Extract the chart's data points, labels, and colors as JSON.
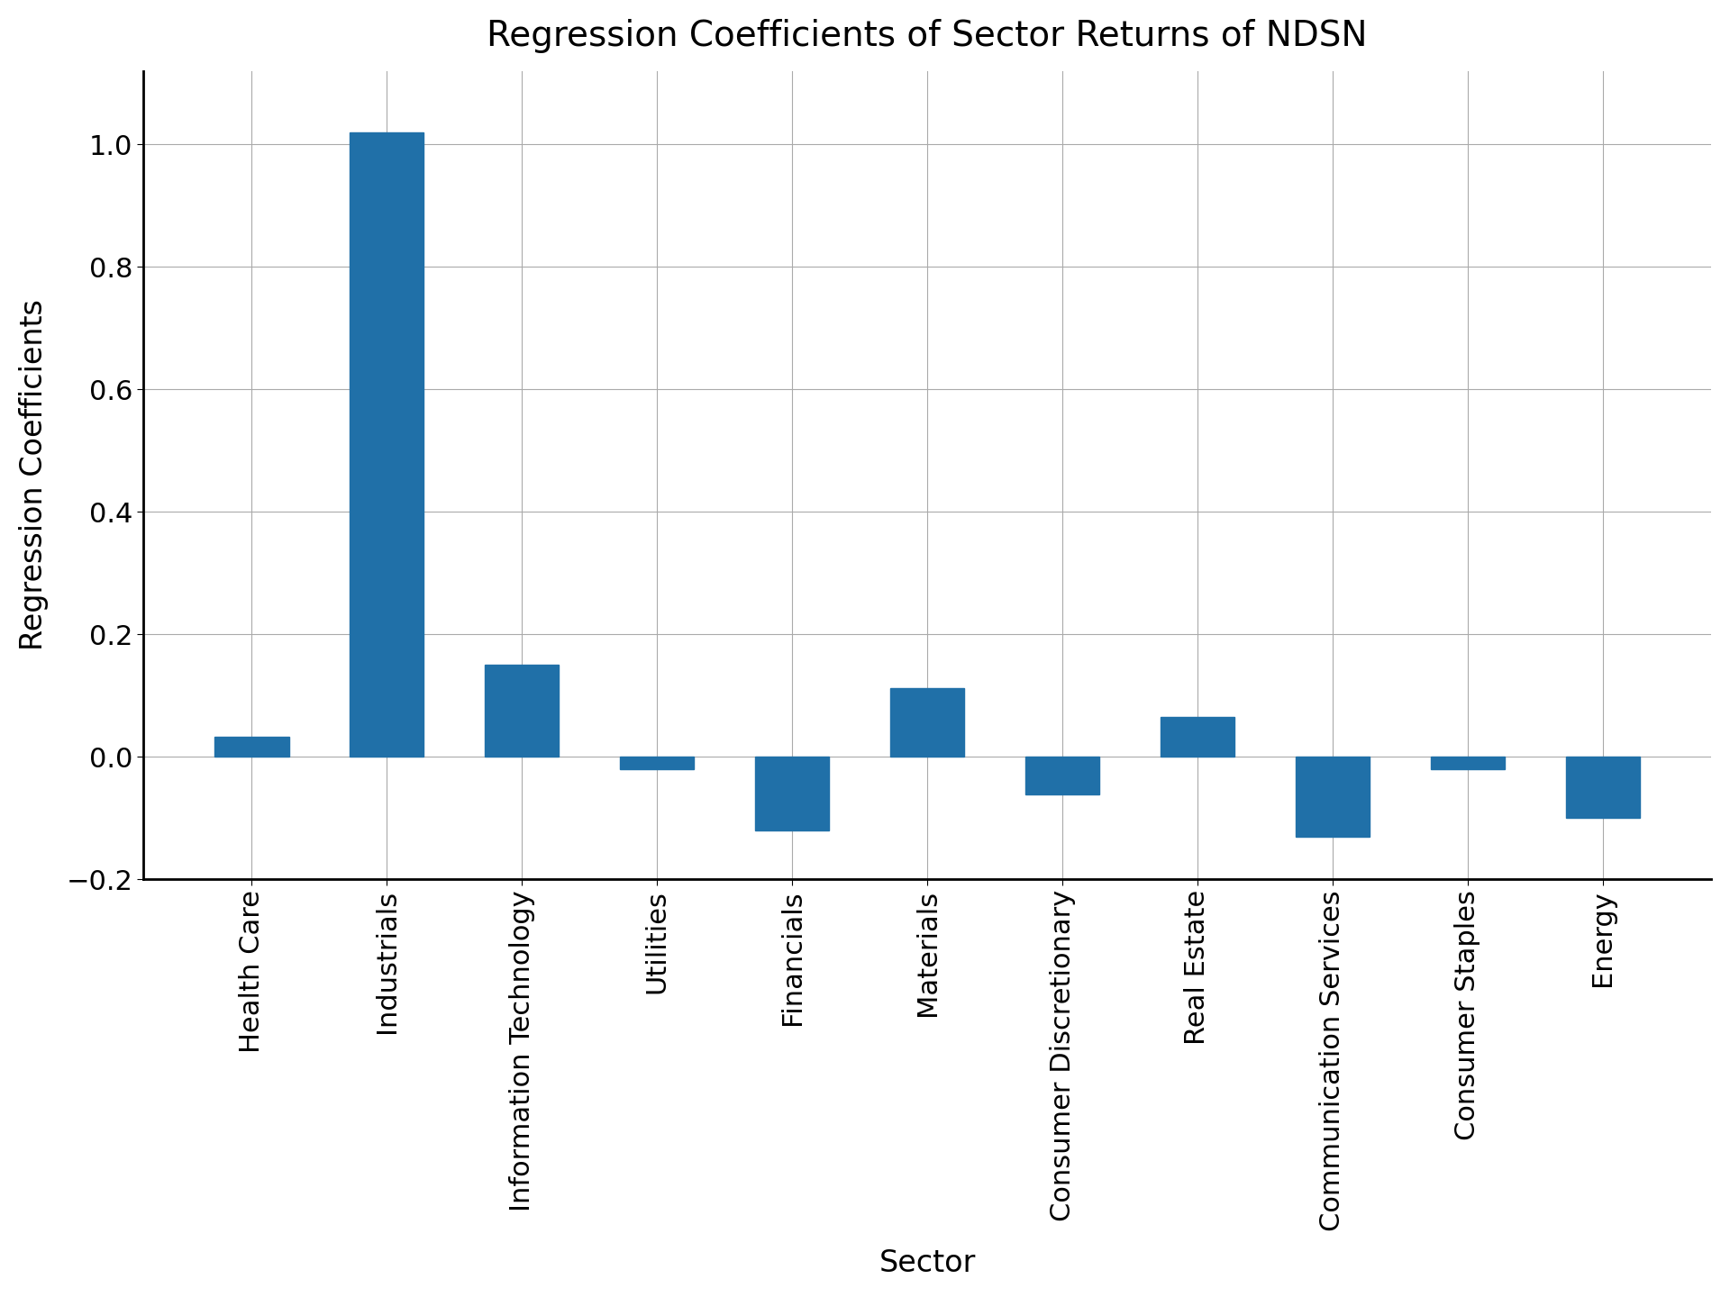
{
  "categories": [
    "Health Care",
    "Industrials",
    "Information Technology",
    "Utilities",
    "Financials",
    "Materials",
    "Consumer Discretionary",
    "Real Estate",
    "Communication Services",
    "Consumer Staples",
    "Energy"
  ],
  "values": [
    0.033,
    1.02,
    0.15,
    -0.02,
    -0.12,
    0.112,
    -0.062,
    0.065,
    -0.13,
    -0.02,
    -0.1
  ],
  "bar_color": "#2070a8",
  "title": "Regression Coefficients of Sector Returns of NDSN",
  "xlabel": "Sector",
  "ylabel": "Regression Coefficients",
  "title_fontsize": 28,
  "label_fontsize": 24,
  "tick_fontsize": 22,
  "ylim": [
    -0.2,
    1.12
  ],
  "ytick_step": 0.2,
  "background_color": "#ffffff",
  "grid_color": "#aaaaaa",
  "bar_width": 0.55
}
